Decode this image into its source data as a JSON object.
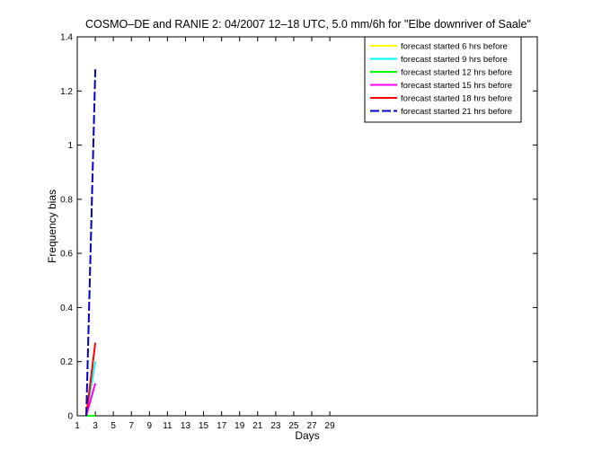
{
  "chart_data": {
    "type": "line",
    "title": "COSMO–DE and RANIE 2: 04/2007 12–18 UTC, 5.0 mm/6h for \"Elbe downriver of Saale\"",
    "xlabel": "Days",
    "ylabel": "Frequency bias",
    "xlim": [
      1,
      52
    ],
    "ylim": [
      0,
      1.4
    ],
    "xticks": [
      1,
      3,
      5,
      7,
      9,
      11,
      13,
      15,
      17,
      19,
      21,
      23,
      25,
      27,
      29
    ],
    "yticks": [
      0,
      0.2,
      0.4,
      0.6,
      0.8,
      1,
      1.2,
      1.4
    ],
    "grid": false,
    "legend_position": "top-right",
    "series": [
      {
        "name": "forecast started 6 hrs before",
        "color": "#ffff00",
        "dash": "solid",
        "x": [
          2,
          3
        ],
        "y": [
          0,
          0
        ]
      },
      {
        "name": "forecast started 9 hrs before",
        "color": "#00ffff",
        "dash": "solid",
        "x": [
          2,
          3
        ],
        "y": [
          0,
          0.2
        ]
      },
      {
        "name": "forecast started 12 hrs before",
        "color": "#00ff00",
        "dash": "solid",
        "x": [
          2,
          3
        ],
        "y": [
          0,
          0
        ]
      },
      {
        "name": "forecast started 15 hrs before",
        "color": "#ff00ff",
        "dash": "solid",
        "x": [
          2,
          3
        ],
        "y": [
          0,
          0.12
        ]
      },
      {
        "name": "forecast started 18 hrs before",
        "color": "#ff0000",
        "dash": "solid",
        "x": [
          2,
          3
        ],
        "y": [
          0,
          0.27
        ]
      },
      {
        "name": "forecast started 21 hrs before",
        "color": "#0000cc",
        "dash": "dashed",
        "x": [
          2,
          3
        ],
        "y": [
          0,
          1.28
        ]
      }
    ]
  }
}
